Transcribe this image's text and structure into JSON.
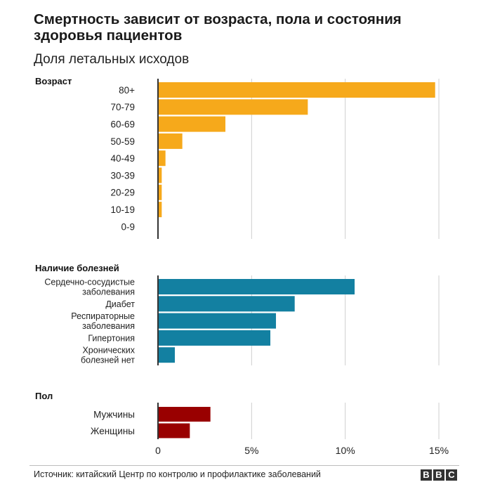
{
  "title": "Смертность зависит от возраста, пола и состояния здоровья пациентов",
  "subtitle": "Доля летальных исходов",
  "source": "Источник: китайский Центр по контролю и профилактике заболеваний",
  "logo": [
    "B",
    "B",
    "C"
  ],
  "chart_data": [
    {
      "type": "bar",
      "group_label": "Возраст",
      "color": "#f6a91b",
      "categories": [
        "80+",
        "70-79",
        "60-69",
        "50-59",
        "40-49",
        "30-39",
        "20-29",
        "10-19",
        "0-9"
      ],
      "values": [
        14.8,
        8.0,
        3.6,
        1.3,
        0.4,
        0.2,
        0.2,
        0.2,
        0.0
      ]
    },
    {
      "type": "bar",
      "group_label": "Наличие болезней",
      "color": "#1380a1",
      "categories": [
        [
          "Сердечно-сосудистые",
          "заболевания"
        ],
        [
          "Диабет"
        ],
        [
          "Респираторные",
          "заболевания"
        ],
        [
          "Гипертония"
        ],
        [
          "Хронических",
          "болезней нет"
        ]
      ],
      "values": [
        10.5,
        7.3,
        6.3,
        6.0,
        0.9
      ]
    },
    {
      "type": "bar",
      "group_label": "Пол",
      "color": "#990000",
      "categories": [
        "Мужчины",
        "Женщины"
      ],
      "values": [
        2.8,
        1.7
      ]
    }
  ],
  "x_axis": {
    "ticks": [
      0,
      5,
      10,
      15
    ],
    "tick_labels": [
      "0",
      "5%",
      "10%",
      "15%"
    ],
    "xlim": [
      0,
      15
    ],
    "grid": true
  }
}
